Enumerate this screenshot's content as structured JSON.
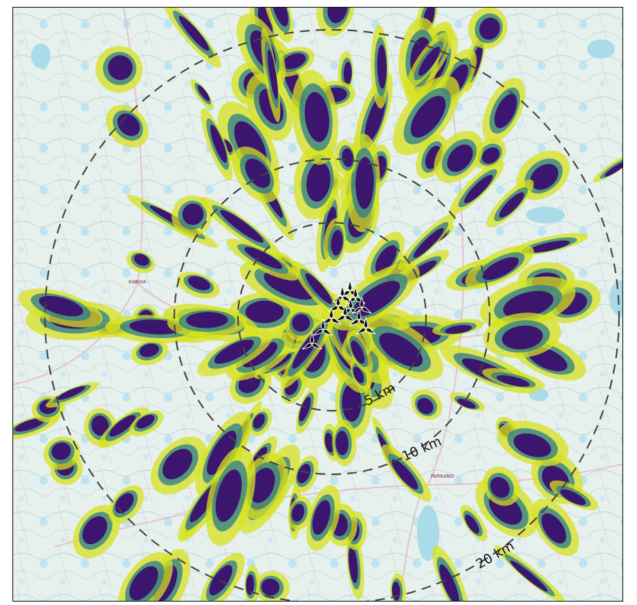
{
  "map": {
    "ring_labels": [
      "5 km",
      "10 km",
      "20 km"
    ],
    "town_labels": [
      "KARVIA",
      "PARKANO"
    ],
    "turbine_count": 12,
    "colors": {
      "water": "#cfe8f0",
      "land": "#e8f1ee",
      "shadow_high": "#3b0f6e",
      "shadow_mid": "#2a7b8e",
      "shadow_low": "#d7e21f",
      "ring": "#444444"
    },
    "icons": [
      "wind-turbine-icon"
    ]
  }
}
